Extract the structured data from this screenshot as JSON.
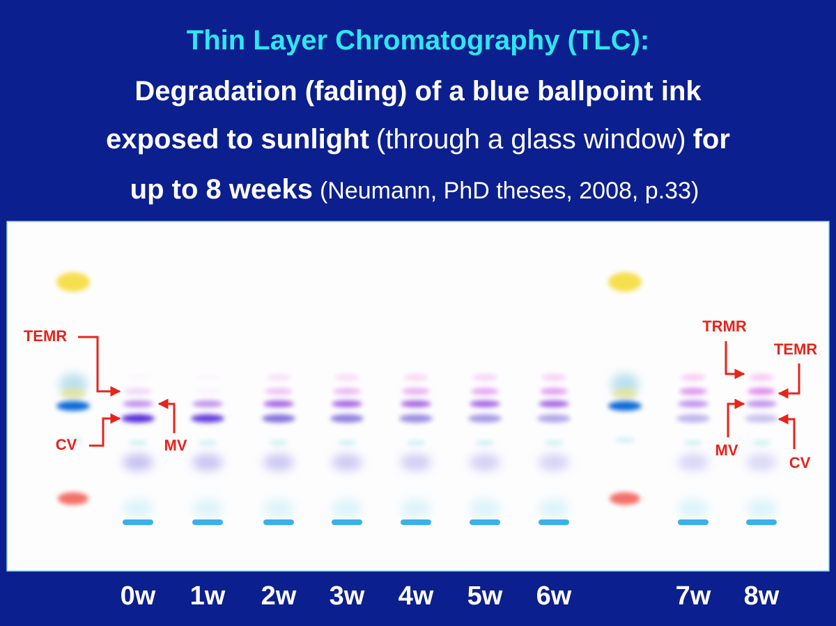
{
  "title": {
    "line1": "Thin Layer Chromatography (TLC):",
    "line2": "Degradation (fading) of a blue ballpoint ink",
    "line3": {
      "bold1": "exposed to sunlight",
      "normal": "(through a glass window)",
      "bold2": "for"
    },
    "line4": {
      "bold": "up to 8 weeks",
      "normal": "(Neumann, PhD theses, 2008, p.33)"
    }
  },
  "annotations": {
    "left": [
      "TEMR",
      "CV",
      "MV"
    ],
    "right": [
      "TRMR",
      "TEMR",
      "MV",
      "CV"
    ]
  },
  "lanes": [
    "0w",
    "1w",
    "2w",
    "3w",
    "4w",
    "5w",
    "6w",
    "7w",
    "8w"
  ]
}
